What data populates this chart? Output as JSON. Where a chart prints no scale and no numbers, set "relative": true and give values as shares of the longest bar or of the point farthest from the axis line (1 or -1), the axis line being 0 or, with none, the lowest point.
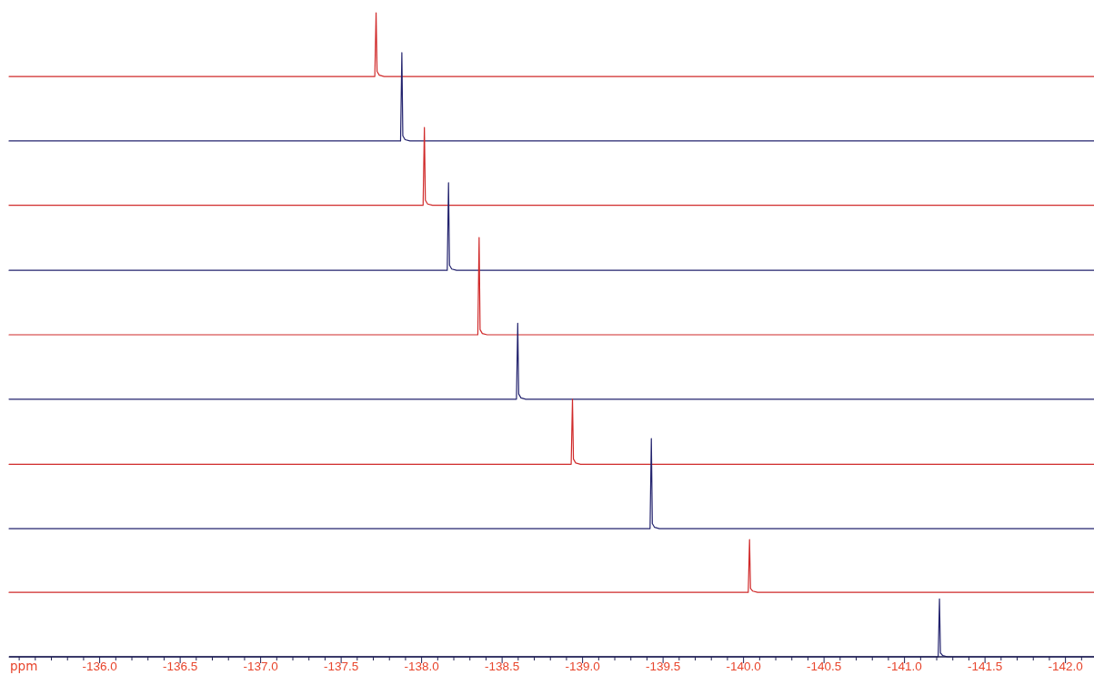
{
  "chart_data": {
    "type": "line",
    "relative": true,
    "tick_labels": "x",
    "xlabel": "ppm",
    "xlim": [
      -135.44,
      -142.18
    ],
    "xticks": [
      {
        "value": -135.5,
        "label": null
      },
      {
        "value": -135.6,
        "label": null
      },
      {
        "value": -135.7,
        "label": null
      },
      {
        "value": -135.8,
        "label": null
      },
      {
        "value": -135.9,
        "label": null
      },
      {
        "value": -136,
        "label": "-136.0"
      },
      {
        "value": -136.1,
        "label": null
      },
      {
        "value": -136.2,
        "label": null
      },
      {
        "value": -136.3,
        "label": null
      },
      {
        "value": -136.4,
        "label": null
      },
      {
        "value": -136.5,
        "label": "-136.5"
      },
      {
        "value": -136.6,
        "label": null
      },
      {
        "value": -136.7,
        "label": null
      },
      {
        "value": -136.8,
        "label": null
      },
      {
        "value": -136.9,
        "label": null
      },
      {
        "value": -137,
        "label": "-137.0"
      },
      {
        "value": -137.1,
        "label": null
      },
      {
        "value": -137.2,
        "label": null
      },
      {
        "value": -137.3,
        "label": null
      },
      {
        "value": -137.4,
        "label": null
      },
      {
        "value": -137.5,
        "label": "-137.5"
      },
      {
        "value": -137.6,
        "label": null
      },
      {
        "value": -137.7,
        "label": null
      },
      {
        "value": -137.8,
        "label": null
      },
      {
        "value": -137.9,
        "label": null
      },
      {
        "value": -138,
        "label": "-138.0"
      },
      {
        "value": -138.1,
        "label": null
      },
      {
        "value": -138.2,
        "label": null
      },
      {
        "value": -138.3,
        "label": null
      },
      {
        "value": -138.4,
        "label": null
      },
      {
        "value": -138.5,
        "label": "-138.5"
      },
      {
        "value": -138.6,
        "label": null
      },
      {
        "value": -138.7,
        "label": null
      },
      {
        "value": -138.8,
        "label": null
      },
      {
        "value": -138.9,
        "label": null
      },
      {
        "value": -139,
        "label": "-139.0"
      },
      {
        "value": -139.1,
        "label": null
      },
      {
        "value": -139.2,
        "label": null
      },
      {
        "value": -139.3,
        "label": null
      },
      {
        "value": -139.4,
        "label": null
      },
      {
        "value": -139.5,
        "label": "-139.5"
      },
      {
        "value": -139.6,
        "label": null
      },
      {
        "value": -139.7,
        "label": null
      },
      {
        "value": -139.8,
        "label": null
      },
      {
        "value": -139.9,
        "label": null
      },
      {
        "value": -140,
        "label": "-140.0"
      },
      {
        "value": -140.1,
        "label": null
      },
      {
        "value": -140.2,
        "label": null
      },
      {
        "value": -140.3,
        "label": null
      },
      {
        "value": -140.4,
        "label": null
      },
      {
        "value": -140.5,
        "label": "-140.5"
      },
      {
        "value": -140.6,
        "label": null
      },
      {
        "value": -140.7,
        "label": null
      },
      {
        "value": -140.8,
        "label": null
      },
      {
        "value": -140.9,
        "label": null
      },
      {
        "value": -141,
        "label": "-141.0"
      },
      {
        "value": -141.1,
        "label": null
      },
      {
        "value": -141.2,
        "label": null
      },
      {
        "value": -141.3,
        "label": null
      },
      {
        "value": -141.4,
        "label": null
      },
      {
        "value": -141.5,
        "label": "-141.5"
      },
      {
        "value": -141.6,
        "label": null
      },
      {
        "value": -141.7,
        "label": null
      },
      {
        "value": -141.8,
        "label": null
      },
      {
        "value": -141.9,
        "label": null
      },
      {
        "value": -142,
        "label": "-142.0"
      },
      {
        "value": -142.1,
        "label": null
      }
    ],
    "series": [
      {
        "color": "#d02a2a",
        "x": [
          -135.44,
          -137.712,
          -137.72,
          -137.726,
          -137.74,
          -137.77,
          -142.18
        ],
        "values": [
          0.901,
          0.901,
          1,
          0.909,
          0.903,
          0.901,
          0.901
        ]
      },
      {
        "color": "#23236e",
        "x": [
          -135.44,
          -137.872,
          -137.88,
          -137.886,
          -137.9,
          -137.93,
          -142.18
        ],
        "values": [
          0.801,
          0.801,
          0.938,
          0.809,
          0.803,
          0.801,
          0.801
        ]
      },
      {
        "color": "#d02a2a",
        "x": [
          -135.44,
          -138.012,
          -138.02,
          -138.026,
          -138.04,
          -138.07,
          -142.18
        ],
        "values": [
          0.701,
          0.701,
          0.822,
          0.709,
          0.703,
          0.701,
          0.701
        ]
      },
      {
        "color": "#23236e",
        "x": [
          -135.44,
          -138.162,
          -138.17,
          -138.176,
          -138.19,
          -138.22,
          -142.18
        ],
        "values": [
          0.6,
          0.6,
          0.736,
          0.608,
          0.602,
          0.6,
          0.6
        ]
      },
      {
        "color": "#d02a2a",
        "x": [
          -135.44,
          -138.352,
          -138.36,
          -138.366,
          -138.38,
          -138.41,
          -142.18
        ],
        "values": [
          0.5,
          0.5,
          0.651,
          0.508,
          0.502,
          0.5,
          0.5
        ]
      },
      {
        "color": "#23236e",
        "x": [
          -135.44,
          -138.592,
          -138.6,
          -138.606,
          -138.62,
          -138.65,
          -142.18
        ],
        "values": [
          0.4,
          0.4,
          0.518,
          0.408,
          0.402,
          0.4,
          0.4
        ]
      },
      {
        "color": "#d02a2a",
        "x": [
          -135.44,
          -138.932,
          -138.94,
          -138.946,
          -138.96,
          -138.99,
          -142.18
        ],
        "values": [
          0.299,
          0.299,
          0.4,
          0.307,
          0.301,
          0.299,
          0.299
        ]
      },
      {
        "color": "#23236e",
        "x": [
          -135.44,
          -139.422,
          -139.43,
          -139.436,
          -139.45,
          -139.48,
          -142.18
        ],
        "values": [
          0.199,
          0.199,
          0.339,
          0.207,
          0.201,
          0.199,
          0.199
        ]
      },
      {
        "color": "#d02a2a",
        "x": [
          -135.44,
          -140.032,
          -140.04,
          -140.046,
          -140.06,
          -140.09,
          -142.18
        ],
        "values": [
          0.1,
          0.1,
          0.182,
          0.106,
          0.102,
          0.1,
          0.1
        ]
      },
      {
        "color": "#23236e",
        "x": [
          -135.44,
          -141.212,
          -141.22,
          -141.226,
          -141.24,
          -141.27,
          -142.18
        ],
        "values": [
          0,
          0,
          0.09,
          0.006,
          0.002,
          0,
          0
        ]
      }
    ]
  }
}
